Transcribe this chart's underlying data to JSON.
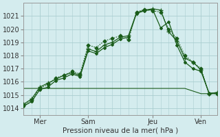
{
  "background_color": "#d4ecee",
  "grid_color": "#aacdd0",
  "line_color": "#1a5c1a",
  "xlabel": "Pression niveau de la mer( hPa )",
  "ylim": [
    1013.5,
    1022.0
  ],
  "yticks": [
    1014,
    1015,
    1016,
    1017,
    1018,
    1019,
    1020,
    1021
  ],
  "xlim": [
    0,
    72
  ],
  "xtick_positions": [
    6,
    24,
    48,
    66
  ],
  "xtick_labels": [
    "Mer",
    "Sam",
    "Jeu",
    "Ven"
  ],
  "series": [
    {
      "x": [
        0,
        3,
        6,
        9,
        12,
        15,
        18,
        21,
        24,
        27,
        30,
        33,
        36,
        39,
        42,
        45,
        48,
        51,
        54,
        57,
        60,
        63,
        66,
        69,
        72
      ],
      "y": [
        1014.2,
        1014.6,
        1015.5,
        1015.8,
        1016.3,
        1016.5,
        1016.8,
        1016.6,
        1018.8,
        1018.6,
        1019.1,
        1019.3,
        1019.5,
        1019.2,
        1021.3,
        1021.5,
        1021.4,
        1021.3,
        1020.0,
        1019.3,
        1018.0,
        1017.5,
        1017.0,
        1015.1,
        1015.1
      ],
      "style": "dotted",
      "marker": "D",
      "markersize": 2.5,
      "linewidth": 0.8
    },
    {
      "x": [
        0,
        3,
        6,
        9,
        12,
        15,
        18,
        21,
        24,
        27,
        30,
        33,
        36,
        39,
        42,
        45,
        48,
        51,
        54,
        57,
        60,
        63,
        66,
        69,
        72
      ],
      "y": [
        1014.3,
        1014.7,
        1015.6,
        1015.9,
        1016.2,
        1016.5,
        1016.7,
        1016.5,
        1018.5,
        1018.3,
        1018.8,
        1019.0,
        1019.4,
        1019.5,
        1021.25,
        1021.45,
        1021.55,
        1021.45,
        1019.8,
        1019.1,
        1017.8,
        1017.5,
        1016.9,
        1015.1,
        1015.2
      ],
      "style": "solid",
      "marker": "+",
      "markersize": 4,
      "linewidth": 0.9
    },
    {
      "x": [
        0,
        3,
        6,
        9,
        12,
        15,
        18,
        21,
        24,
        27,
        30,
        33,
        36,
        39,
        42,
        45,
        48,
        51,
        54,
        57,
        60,
        63,
        66,
        69,
        72
      ],
      "y": [
        1014.15,
        1014.5,
        1015.4,
        1015.6,
        1016.1,
        1016.3,
        1016.6,
        1016.4,
        1018.35,
        1018.15,
        1018.6,
        1018.85,
        1019.25,
        1019.4,
        1021.2,
        1021.4,
        1021.5,
        1020.1,
        1020.55,
        1018.8,
        1017.5,
        1017.0,
        1016.8,
        1015.15,
        1015.15
      ],
      "style": "solid",
      "marker": "D",
      "markersize": 2.0,
      "linewidth": 0.9
    },
    {
      "x": [
        0,
        6,
        12,
        18,
        24,
        30,
        36,
        42,
        48,
        54,
        60,
        66,
        72
      ],
      "y": [
        1015.5,
        1015.5,
        1015.5,
        1015.5,
        1015.5,
        1015.5,
        1015.5,
        1015.5,
        1015.5,
        1015.5,
        1015.5,
        1015.1,
        1015.1
      ],
      "style": "solid",
      "marker": null,
      "markersize": 0,
      "linewidth": 0.8
    }
  ]
}
